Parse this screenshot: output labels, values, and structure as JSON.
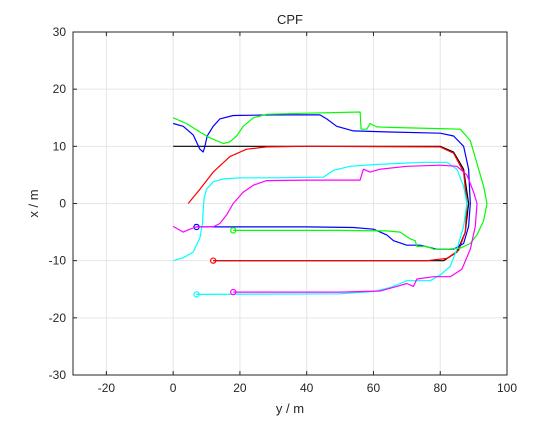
{
  "chart_data": {
    "type": "line",
    "title": "CPF",
    "xlabel": "y / m",
    "ylabel": "x / m",
    "xlim": [
      -30,
      100
    ],
    "ylim": [
      -30,
      30
    ],
    "xticks": [
      -20,
      0,
      20,
      40,
      60,
      80,
      100
    ],
    "yticks": [
      -30,
      -20,
      -10,
      0,
      10,
      20,
      30
    ],
    "grid": true,
    "colors": {
      "black": "#000000",
      "red": "#ff0000",
      "blue": "#0000ff",
      "green": "#00ff00",
      "cyan": "#00ffff",
      "magenta": "#ff00ff",
      "grid": "#e6e6e6",
      "axis": "#262626"
    },
    "series": [
      {
        "color": "black",
        "points": [
          [
            0,
            10
          ],
          [
            80,
            10
          ],
          [
            84,
            9
          ],
          [
            87,
            6
          ],
          [
            88.5,
            0
          ],
          [
            87.5,
            -5
          ],
          [
            85,
            -8.5
          ],
          [
            81,
            -10
          ],
          [
            12,
            -10
          ]
        ]
      },
      {
        "color": "red",
        "points": [
          [
            4.5,
            0
          ],
          [
            8,
            2.5
          ],
          [
            12,
            5.5
          ],
          [
            17,
            8.2
          ],
          [
            22,
            9.5
          ],
          [
            28,
            9.9
          ],
          [
            40,
            10
          ],
          [
            80,
            9.9
          ],
          [
            84,
            8.8
          ],
          [
            87,
            5.5
          ],
          [
            88,
            0
          ],
          [
            87.5,
            -5
          ],
          [
            85.5,
            -8.2
          ],
          [
            82,
            -9.6
          ],
          [
            76,
            -10
          ],
          [
            12,
            -10
          ]
        ],
        "end_marker": [
          12,
          -10
        ]
      },
      {
        "color": "blue",
        "points": [
          [
            0,
            14
          ],
          [
            3,
            13.5
          ],
          [
            6,
            12
          ],
          [
            8,
            9.5
          ],
          [
            9,
            9
          ],
          [
            9.5,
            10
          ],
          [
            10.2,
            11.8
          ],
          [
            12,
            13.5
          ],
          [
            14,
            14.8
          ],
          [
            18,
            15.4
          ],
          [
            30,
            15.5
          ],
          [
            44,
            15.5
          ],
          [
            46,
            14.8
          ],
          [
            49,
            13.5
          ],
          [
            54,
            12.7
          ],
          [
            65,
            12.5
          ],
          [
            80,
            12.3
          ],
          [
            84,
            11.8
          ],
          [
            87,
            10
          ],
          [
            88.5,
            6
          ],
          [
            89,
            0
          ],
          [
            88.5,
            -4
          ],
          [
            87,
            -7
          ],
          [
            84,
            -8
          ],
          [
            79,
            -8
          ],
          [
            74,
            -7.3
          ],
          [
            70,
            -7.3
          ],
          [
            66,
            -6.5
          ],
          [
            64,
            -5.5
          ],
          [
            60,
            -4.5
          ],
          [
            54,
            -4.2
          ],
          [
            40,
            -4.1
          ],
          [
            7,
            -4.1
          ]
        ],
        "end_marker": [
          7,
          -4.1
        ]
      },
      {
        "color": "green",
        "points": [
          [
            0,
            15
          ],
          [
            4,
            14
          ],
          [
            8,
            12.5
          ],
          [
            11,
            11.5
          ],
          [
            15,
            10.5
          ],
          [
            17,
            10.8
          ],
          [
            19,
            11.8
          ],
          [
            21,
            13.5
          ],
          [
            24,
            15
          ],
          [
            28,
            15.6
          ],
          [
            40,
            15.8
          ],
          [
            56,
            16
          ],
          [
            56.3,
            13
          ],
          [
            58,
            13
          ],
          [
            59,
            14
          ],
          [
            61,
            13.4
          ],
          [
            66,
            13.3
          ],
          [
            80,
            13.1
          ],
          [
            86,
            13
          ],
          [
            89,
            11
          ],
          [
            91,
            7
          ],
          [
            93,
            3
          ],
          [
            94,
            0
          ],
          [
            93,
            -3
          ],
          [
            91,
            -5.5
          ],
          [
            89,
            -7
          ],
          [
            86,
            -7.8
          ],
          [
            82,
            -8
          ],
          [
            78,
            -8
          ],
          [
            76,
            -7.5
          ],
          [
            73,
            -7.5
          ],
          [
            72.5,
            -6.5
          ],
          [
            71,
            -6.2
          ],
          [
            68,
            -5
          ],
          [
            64,
            -4.8
          ],
          [
            50,
            -4.7
          ],
          [
            18,
            -4.7
          ]
        ],
        "end_marker": [
          18,
          -4.7
        ]
      },
      {
        "color": "cyan",
        "points": [
          [
            0,
            -10
          ],
          [
            3,
            -9.5
          ],
          [
            6,
            -8.5
          ],
          [
            8,
            -6
          ],
          [
            8.8,
            -3.5
          ],
          [
            9,
            -1
          ],
          [
            9.3,
            1
          ],
          [
            10,
            2.5
          ],
          [
            12,
            3.8
          ],
          [
            15,
            4.3
          ],
          [
            20,
            4.5
          ],
          [
            30,
            4.5
          ],
          [
            45,
            4.6
          ],
          [
            48,
            5.8
          ],
          [
            53,
            6.5
          ],
          [
            60,
            6.8
          ],
          [
            75,
            7.2
          ],
          [
            82,
            7.2
          ],
          [
            85,
            6
          ],
          [
            87,
            3
          ],
          [
            88,
            0
          ],
          [
            87,
            -4
          ],
          [
            85,
            -8
          ],
          [
            83,
            -11
          ],
          [
            80,
            -12.5
          ],
          [
            77,
            -13.5
          ],
          [
            70,
            -13.5
          ],
          [
            68,
            -14
          ],
          [
            65,
            -14.7
          ],
          [
            60,
            -15.4
          ],
          [
            50,
            -15.8
          ],
          [
            7,
            -15.9
          ]
        ],
        "end_marker": [
          7,
          -15.9
        ]
      },
      {
        "color": "magenta",
        "points": [
          [
            0,
            -4
          ],
          [
            3,
            -5
          ],
          [
            5,
            -4.5
          ],
          [
            7,
            -4.1
          ],
          [
            12,
            -4.1
          ],
          [
            14,
            -3.5
          ],
          [
            16,
            -2
          ],
          [
            18,
            0
          ],
          [
            21,
            2
          ],
          [
            24,
            3.2
          ],
          [
            28,
            4
          ],
          [
            40,
            4.1
          ],
          [
            56,
            4.1
          ],
          [
            57,
            6
          ],
          [
            59,
            5.5
          ],
          [
            62,
            6
          ],
          [
            70,
            6.5
          ],
          [
            80,
            6.7
          ],
          [
            85,
            6.5
          ],
          [
            88,
            5
          ],
          [
            90,
            2
          ],
          [
            91,
            0
          ],
          [
            90.5,
            -4
          ],
          [
            89,
            -8
          ],
          [
            86.5,
            -11.5
          ],
          [
            83,
            -12.8
          ],
          [
            78,
            -12.8
          ],
          [
            73,
            -13.2
          ],
          [
            72,
            -14.5
          ],
          [
            70,
            -14
          ],
          [
            67,
            -14.5
          ],
          [
            62,
            -15.3
          ],
          [
            50,
            -15.5
          ],
          [
            18,
            -15.5
          ]
        ],
        "end_marker": [
          18,
          -15.5
        ]
      }
    ]
  }
}
